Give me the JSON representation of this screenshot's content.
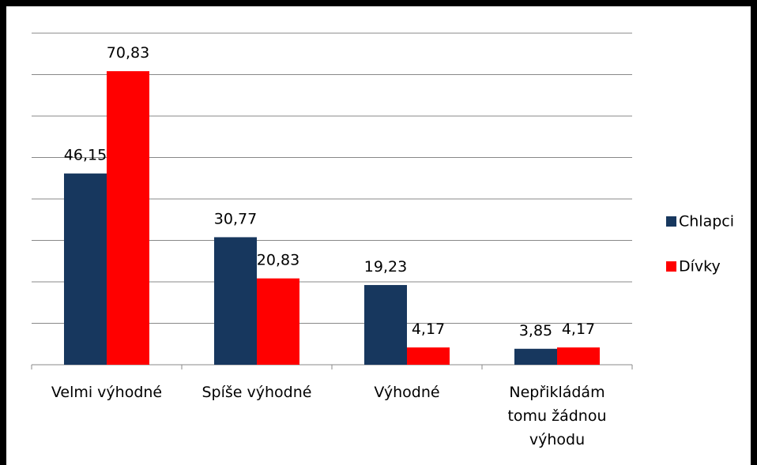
{
  "chart_data": {
    "type": "bar",
    "categories": [
      "Velmi výhodné",
      "Spíše výhodné",
      "Výhodné",
      "Nepřikládám tomu žádnou výhodu"
    ],
    "series": [
      {
        "name": "Chlapci",
        "color": "#17375e",
        "values": [
          46.15,
          30.77,
          19.23,
          3.85
        ],
        "value_labels": [
          "46,15",
          "30,77",
          "19,23",
          "3,85"
        ]
      },
      {
        "name": "Dívky",
        "color": "#ff0000",
        "values": [
          70.83,
          20.83,
          4.17,
          4.17
        ],
        "value_labels": [
          "70,83",
          "20,83",
          "4,17",
          "4,17"
        ]
      }
    ],
    "ylim": [
      0,
      80
    ],
    "yticks": [
      0,
      10,
      20,
      30,
      40,
      50,
      60,
      70,
      80
    ],
    "grid": true,
    "legend": "right"
  }
}
